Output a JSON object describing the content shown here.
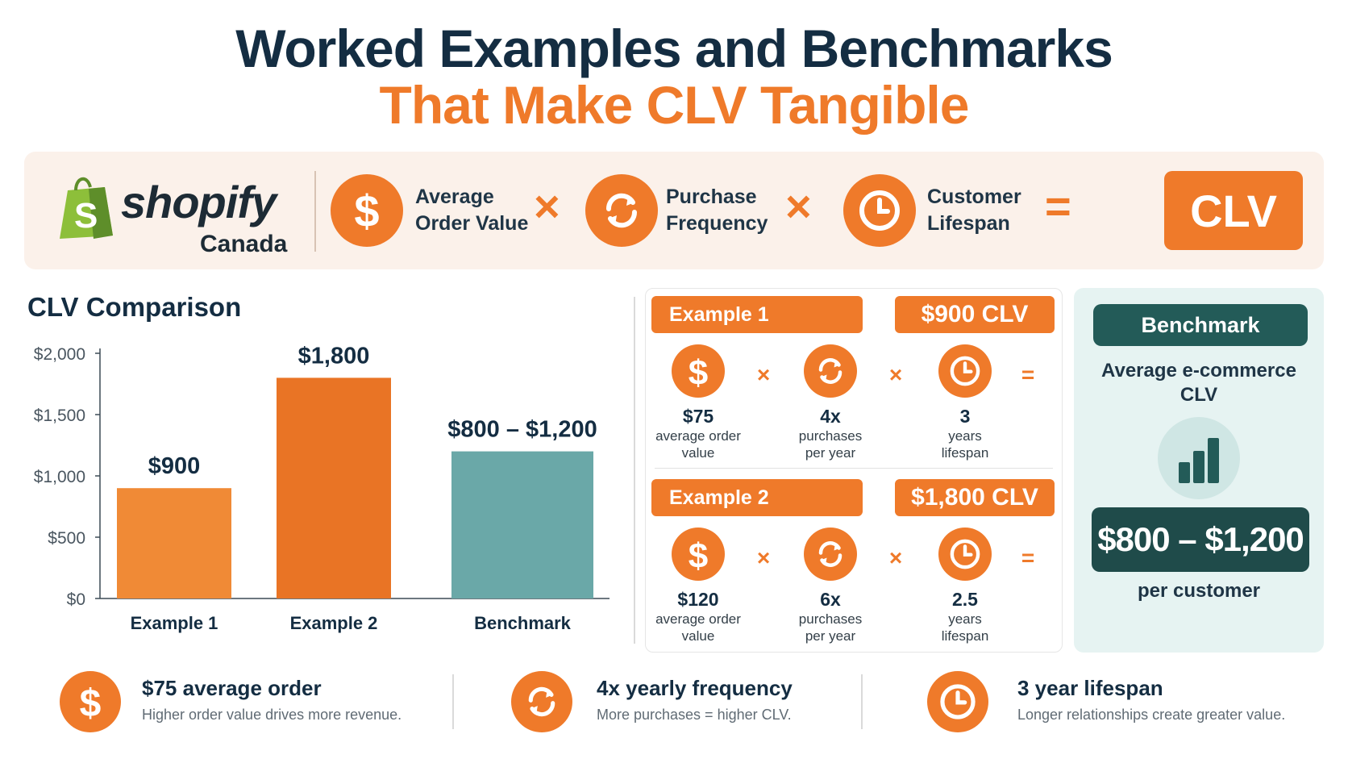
{
  "title": {
    "line1": "Worked Examples and Benchmarks",
    "line2": "That Make CLV Tangible"
  },
  "logo": {
    "word": "shopify",
    "sub": "Canada",
    "bag_letter": "S"
  },
  "formula": {
    "aov_label": [
      "Average",
      "Order Value"
    ],
    "freq_label": [
      "Purchase",
      "Frequency"
    ],
    "life_label": [
      "Customer",
      "Lifespan"
    ],
    "times": "×",
    "equals": "=",
    "result": "CLV",
    "icons": [
      "dollar-icon",
      "refresh-icon",
      "clock-icon"
    ]
  },
  "chart_data": {
    "type": "bar",
    "title": "CLV Comparison",
    "categories": [
      "Example 1",
      "Example 2",
      "Benchmark"
    ],
    "values": [
      900,
      1800,
      1200
    ],
    "range_low": [
      null,
      null,
      800
    ],
    "data_labels": [
      "$900",
      "$1,800",
      "$800 – $1,200"
    ],
    "ylim": [
      0,
      2000
    ],
    "yticks": [
      0,
      500,
      1000,
      1500,
      2000
    ],
    "ytick_labels": [
      "$0",
      "$500",
      "$1,000",
      "$1,500",
      "$2,000"
    ],
    "colors": [
      "#f08a36",
      "#e97425",
      "#6aa8a8"
    ],
    "grid": false,
    "legend": "none"
  },
  "examples": [
    {
      "name": "Example 1",
      "clv": "$900 CLV",
      "aov": "$75",
      "aov_cap": [
        "average order",
        "value"
      ],
      "freq": "4x",
      "freq_cap": [
        "purchases",
        "per year"
      ],
      "life": "3",
      "life_cap": [
        "years",
        "lifespan"
      ]
    },
    {
      "name": "Example 2",
      "clv": "$1,800 CLV",
      "aov": "$120",
      "aov_cap": [
        "average order",
        "value"
      ],
      "freq": "6x",
      "freq_cap": [
        "purchases",
        "per year"
      ],
      "life": "2.5",
      "life_cap": [
        "years",
        "lifespan"
      ]
    }
  ],
  "benchmark": {
    "tag": "Benchmark",
    "sub": "Average e-commerce CLV",
    "range": "$800 – $1,200",
    "per": "per customer",
    "icon": "bar-chart-icon"
  },
  "bottom": [
    {
      "title": "$75 average order",
      "desc": "Higher order value drives more revenue.",
      "icon": "dollar-icon"
    },
    {
      "title": "4x yearly frequency",
      "desc": "More purchases = higher CLV.",
      "icon": "refresh-icon"
    },
    {
      "title": "3 year lifespan",
      "desc": "Longer relationships create greater value.",
      "icon": "clock-icon"
    }
  ],
  "colors": {
    "orange": "#ef7a2a",
    "navy": "#142d42",
    "teal": "#235b58",
    "teal_light": "#e6f3f2",
    "band": "#fbf1ea"
  }
}
